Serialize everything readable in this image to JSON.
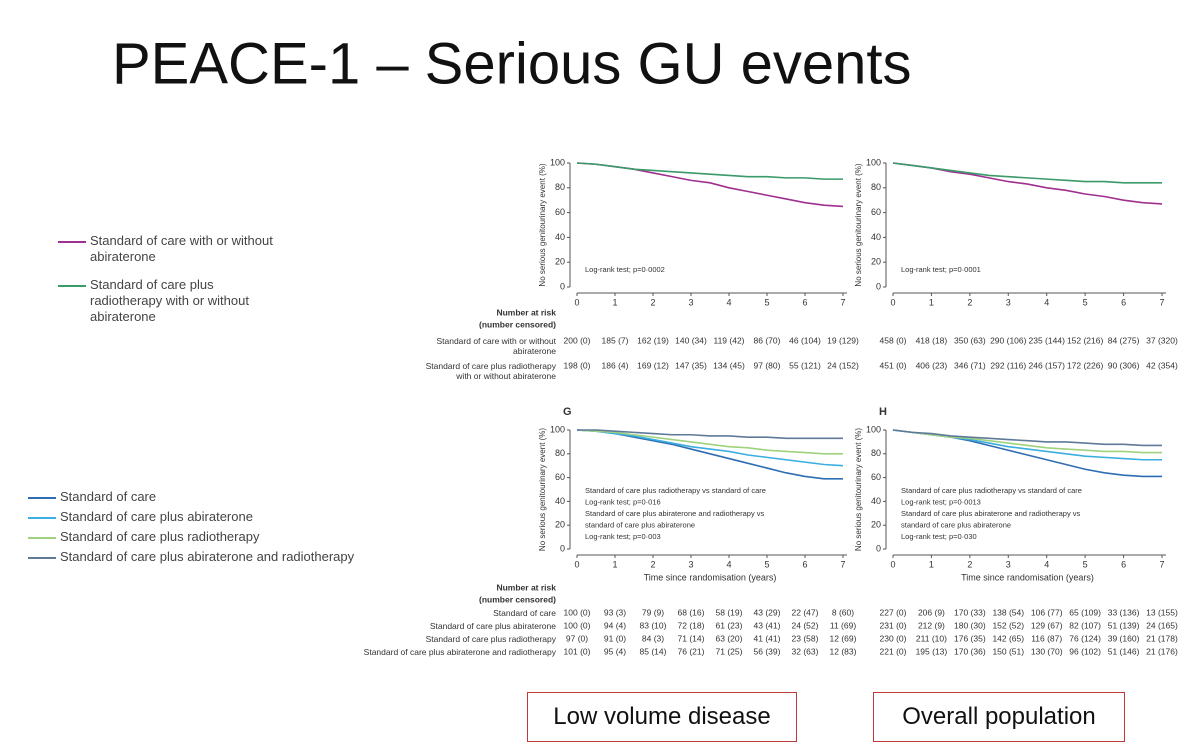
{
  "title": "PEACE-1 – Serious GU events",
  "chart_data": [
    {
      "type": "line",
      "ylabel": "No serious genitourinary event (%)",
      "annotation": [
        "Log-rank test; p=0·0002"
      ],
      "x": [
        0,
        0.5,
        1,
        1.5,
        2,
        2.5,
        3,
        3.5,
        4,
        4.5,
        5,
        5.5,
        6,
        6.5,
        7
      ],
      "xlim": [
        0,
        7
      ],
      "xticks": [
        0,
        1,
        2,
        3,
        4,
        5,
        6,
        7
      ],
      "ylim": [
        0,
        100
      ],
      "yticks": [
        0,
        20,
        40,
        60,
        80,
        100
      ],
      "series": [
        {
          "name": "Standard of care with or without abiraterone",
          "color": "#a0308f",
          "values": [
            100,
            99,
            97,
            95,
            92,
            89,
            86,
            84,
            80,
            77,
            74,
            71,
            68,
            66,
            65
          ]
        },
        {
          "name": "Standard of care plus radiotherapy with or without abiraterone",
          "color": "#3a9a6a",
          "values": [
            100,
            99,
            97,
            95,
            94,
            93,
            92,
            91,
            90,
            89,
            89,
            88,
            88,
            87,
            87
          ]
        }
      ]
    },
    {
      "type": "line",
      "ylabel": "No serious genitourinary event (%)",
      "annotation": [
        "Log-rank test; p=0·0001"
      ],
      "x": [
        0,
        0.5,
        1,
        1.5,
        2,
        2.5,
        3,
        3.5,
        4,
        4.5,
        5,
        5.5,
        6,
        6.5,
        7
      ],
      "xlim": [
        0,
        7
      ],
      "xticks": [
        0,
        1,
        2,
        3,
        4,
        5,
        6,
        7
      ],
      "ylim": [
        0,
        100
      ],
      "yticks": [
        0,
        20,
        40,
        60,
        80,
        100
      ],
      "series": [
        {
          "name": "Standard of care with or without abiraterone",
          "color": "#a0308f",
          "values": [
            100,
            98,
            96,
            93,
            91,
            88,
            85,
            83,
            80,
            78,
            75,
            73,
            70,
            68,
            67
          ]
        },
        {
          "name": "Standard of care plus radiotherapy with or without abiraterone",
          "color": "#3a9a6a",
          "values": [
            100,
            98,
            96,
            94,
            92,
            90,
            89,
            88,
            87,
            86,
            85,
            85,
            84,
            84,
            84
          ]
        }
      ]
    },
    {
      "type": "line",
      "panel": "G",
      "ylabel": "No serious genitourinary event (%)",
      "xlabel": "Time since randomisation (years)",
      "annotation": [
        "Standard of care plus radiotherapy vs standard of care",
        "Log-rank test; p=0·016",
        "Standard of care plus abiraterone and radiotherapy vs",
        "standard of care plus abiraterone",
        "Log-rank test; p=0·003"
      ],
      "x": [
        0,
        0.5,
        1,
        1.5,
        2,
        2.5,
        3,
        3.5,
        4,
        4.5,
        5,
        5.5,
        6,
        6.5,
        7
      ],
      "xlim": [
        0,
        7
      ],
      "xticks": [
        0,
        1,
        2,
        3,
        4,
        5,
        6,
        7
      ],
      "ylim": [
        0,
        100
      ],
      "yticks": [
        0,
        20,
        40,
        60,
        80,
        100
      ],
      "series": [
        {
          "name": "Standard of care",
          "color": "#2f6db3",
          "values": [
            100,
            99,
            97,
            94,
            91,
            88,
            84,
            80,
            76,
            72,
            68,
            64,
            61,
            59,
            59
          ]
        },
        {
          "name": "Standard of care plus abiraterone",
          "color": "#3aaee0",
          "values": [
            100,
            99,
            97,
            95,
            92,
            89,
            86,
            84,
            82,
            79,
            77,
            75,
            73,
            71,
            70
          ]
        },
        {
          "name": "Standard of care plus radiotherapy",
          "color": "#9fd27d",
          "values": [
            100,
            99,
            98,
            96,
            94,
            92,
            90,
            88,
            86,
            85,
            83,
            82,
            81,
            80,
            80
          ]
        },
        {
          "name": "Standard of care plus abiraterone and radiotherapy",
          "color": "#5f7a99",
          "values": [
            100,
            100,
            99,
            98,
            97,
            96,
            96,
            95,
            95,
            94,
            94,
            93,
            93,
            93,
            93
          ]
        }
      ]
    },
    {
      "type": "line",
      "panel": "H",
      "ylabel": "No serious genitourinary event (%)",
      "xlabel": "Time since randomisation (years)",
      "annotation": [
        "Standard of care plus radiotherapy vs standard of care",
        "Log-rank test; p=0·0013",
        "Standard of care plus abiraterone and radiotherapy vs",
        "standard of care plus abiraterone",
        "Log-rank test; p=0·030"
      ],
      "x": [
        0,
        0.5,
        1,
        1.5,
        2,
        2.5,
        3,
        3.5,
        4,
        4.5,
        5,
        5.5,
        6,
        6.5,
        7
      ],
      "xlim": [
        0,
        7
      ],
      "xticks": [
        0,
        1,
        2,
        3,
        4,
        5,
        6,
        7
      ],
      "ylim": [
        0,
        100
      ],
      "yticks": [
        0,
        20,
        40,
        60,
        80,
        100
      ],
      "series": [
        {
          "name": "Standard of care",
          "color": "#2f6db3",
          "values": [
            100,
            98,
            96,
            94,
            91,
            87,
            83,
            79,
            75,
            71,
            67,
            64,
            62,
            61,
            61
          ]
        },
        {
          "name": "Standard of care plus abiraterone",
          "color": "#3aaee0",
          "values": [
            100,
            98,
            96,
            94,
            92,
            89,
            86,
            84,
            82,
            80,
            78,
            77,
            76,
            75,
            75
          ]
        },
        {
          "name": "Standard of care plus radiotherapy",
          "color": "#9fd27d",
          "values": [
            100,
            98,
            96,
            94,
            93,
            91,
            89,
            87,
            85,
            84,
            83,
            82,
            82,
            81,
            81
          ]
        },
        {
          "name": "Standard of care plus abiraterone and radiotherapy",
          "color": "#5f7a99",
          "values": [
            100,
            98,
            97,
            95,
            94,
            93,
            92,
            91,
            90,
            90,
            89,
            88,
            88,
            87,
            87
          ]
        }
      ]
    }
  ],
  "risk_tables": [
    {
      "header": [
        "Number at risk",
        "(number censored)"
      ],
      "rows": [
        {
          "label": "Standard of care with or without abiraterone",
          "cells": [
            "200 (0)",
            "185 (7)",
            "162 (19)",
            "140 (34)",
            "119 (42)",
            "86 (70)",
            "46 (104)",
            "19 (129)"
          ]
        },
        {
          "label": "Standard of care plus radiotherapy with or without abiraterone",
          "cells": [
            "198 (0)",
            "186 (4)",
            "169 (12)",
            "147 (35)",
            "134 (45)",
            "97 (80)",
            "55 (121)",
            "24 (152)"
          ]
        }
      ]
    },
    {
      "rows": [
        {
          "cells": [
            "458 (0)",
            "418 (18)",
            "350 (63)",
            "290 (106)",
            "235 (144)",
            "152 (216)",
            "84 (275)",
            "37 (320)"
          ]
        },
        {
          "cells": [
            "451 (0)",
            "406 (23)",
            "346 (71)",
            "292 (116)",
            "246 (157)",
            "172 (226)",
            "90 (306)",
            "42 (354)"
          ]
        }
      ]
    },
    {
      "header": [
        "Number at risk",
        "(number censored)"
      ],
      "rows": [
        {
          "label": "Standard of care",
          "cells": [
            "100 (0)",
            "93 (3)",
            "79 (9)",
            "68 (16)",
            "58 (19)",
            "43 (29)",
            "22 (47)",
            "8 (60)"
          ]
        },
        {
          "label": "Standard of care plus abiraterone",
          "cells": [
            "100 (0)",
            "94 (4)",
            "83 (10)",
            "72 (18)",
            "61 (23)",
            "43 (41)",
            "24 (52)",
            "11 (69)"
          ]
        },
        {
          "label": "Standard of care plus radiotherapy",
          "cells": [
            "97 (0)",
            "91 (0)",
            "84 (3)",
            "71 (14)",
            "63 (20)",
            "41 (41)",
            "23 (58)",
            "12 (69)"
          ]
        },
        {
          "label": "Standard of care plus abiraterone and radiotherapy",
          "cells": [
            "101 (0)",
            "95 (4)",
            "85 (14)",
            "76 (21)",
            "71 (25)",
            "56 (39)",
            "32 (63)",
            "12 (83)"
          ]
        }
      ]
    },
    {
      "rows": [
        {
          "cells": [
            "227 (0)",
            "206 (9)",
            "170 (33)",
            "138 (54)",
            "106 (77)",
            "65 (109)",
            "33 (136)",
            "13 (155)"
          ]
        },
        {
          "cells": [
            "231 (0)",
            "212 (9)",
            "180 (30)",
            "152 (52)",
            "129 (67)",
            "82 (107)",
            "51 (139)",
            "24 (165)"
          ]
        },
        {
          "cells": [
            "230 (0)",
            "211 (10)",
            "176 (35)",
            "142 (65)",
            "116 (87)",
            "76 (124)",
            "39 (160)",
            "21 (178)"
          ]
        },
        {
          "cells": [
            "221 (0)",
            "195 (13)",
            "170 (36)",
            "150 (51)",
            "130 (70)",
            "96 (102)",
            "51 (146)",
            "21 (176)"
          ]
        }
      ]
    }
  ],
  "captions": [
    "Low volume disease",
    "Overall population"
  ]
}
